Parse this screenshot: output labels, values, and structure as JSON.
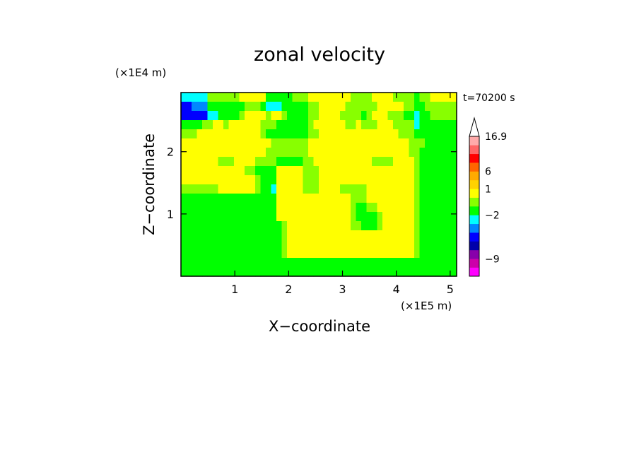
{
  "chart_data": {
    "type": "heatmap",
    "title": "zonal velocity",
    "xlabel": "X−coordinate",
    "ylabel": "Z−coordinate",
    "x_multiplier": "(×1E5 m)",
    "y_multiplier": "(×1E4 m)",
    "time_label": "t=70200 s",
    "xlim": [
      0,
      5.12
    ],
    "ylim": [
      0,
      2.95
    ],
    "x_ticks": [
      1,
      2,
      3,
      4,
      5
    ],
    "x_tick_labels": [
      "1",
      "2",
      "3",
      "4",
      "5"
    ],
    "y_ticks": [
      1,
      2
    ],
    "y_tick_labels": [
      "1",
      "2"
    ],
    "colorbar": {
      "extend": "max",
      "levels": [
        {
          "label": "-9",
          "color": "#ff00ff"
        },
        {
          "label": "",
          "color": "#cc00aa"
        },
        {
          "label": "",
          "color": "#8800aa"
        },
        {
          "label": "",
          "color": "#0000aa"
        },
        {
          "label": "",
          "color": "#0000ff"
        },
        {
          "label": "",
          "color": "#0088ff"
        },
        {
          "label": "",
          "color": "#00ffff"
        },
        {
          "label": "",
          "color": "#00ff00"
        },
        {
          "label": "",
          "color": "#88ff00"
        },
        {
          "label": "",
          "color": "#ffff00"
        },
        {
          "label": "",
          "color": "#ffd200"
        },
        {
          "label": "",
          "color": "#ffaa00"
        },
        {
          "label": "",
          "color": "#ff6600"
        },
        {
          "label": "",
          "color": "#ff0000"
        },
        {
          "label": "",
          "color": "#ff6666"
        },
        {
          "label": "",
          "color": "#ffaaaa"
        }
      ],
      "tick_labels": [
        {
          "label": "16.9",
          "level_boundary": 16
        },
        {
          "label": "6",
          "level_boundary": 12
        },
        {
          "label": "1",
          "level_boundary": 10
        },
        {
          "label": "−2",
          "level_boundary": 7
        },
        {
          "label": "−9",
          "level_boundary": 2
        }
      ]
    },
    "palette": [
      "#ff00ff",
      "#cc00aa",
      "#8800aa",
      "#0000aa",
      "#0000ff",
      "#0088ff",
      "#00ffff",
      "#00ff00",
      "#88ff00",
      "#ffff00",
      "#ffd200",
      "#ffaa00",
      "#ff6600",
      "#ff0000",
      "#ff6666",
      "#ffaaaa"
    ],
    "field_levels": [
      "6666688888899999777778889999999988889999888878899999",
      "4455577777778887666777778899999888888999998877888888",
      "4444466777789999899877778899998888789998887767788888",
      "7777889989999998887777778999999889888999888867777777",
      "8889999999999998777777778899999999999999988877777777",
      "9999999999999999988888889999999999999999999888777777",
      "9999999999999999888888889999999999999999999887777777",
      "9999999888999988887777788999999999998888999987777777",
      "9999999999998877779999988899999999999999999987777777",
      "9999999999999987779999988899999999999999999987777777",
      "8888888999999987769999988899998888899999999987777777",
      "7777777777777777779999999999999988899999999987777777",
      "7777777777777777779999999999999987788999999987777777",
      "7777777777777777779999999999999987777899999987777777",
      "7777777777777777777899999999999988777899999987777777",
      "7777777777777777777899999999999999999999999987777777",
      "7777777777777777777899999999999999999999999987777777",
      "7777777777777777777899999999999999999999999987777777",
      "7777777777777777777777777777777777777777777777777777",
      "7777777777777777777777777777777777777777777777777777"
    ]
  }
}
